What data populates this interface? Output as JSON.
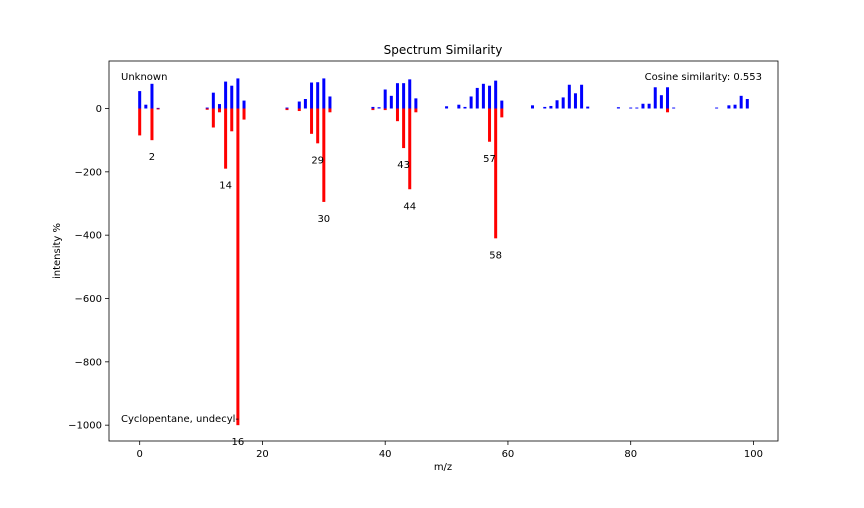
{
  "chart_data": {
    "type": "bar",
    "title": "Spectrum Similarity",
    "xlabel": "m/z",
    "ylabel": "intensity %",
    "xlim": [
      -5,
      104
    ],
    "ylim": [
      -1050,
      150
    ],
    "xticks": [
      0,
      20,
      40,
      60,
      80,
      100
    ],
    "yticks": [
      0,
      -200,
      -400,
      -600,
      -800,
      -1000
    ],
    "xtick_labels": [
      "0",
      "20",
      "40",
      "60",
      "80",
      "100"
    ],
    "ytick_labels": [
      "0",
      "−200",
      "−400",
      "−600",
      "−800",
      "−1000"
    ],
    "grid": false,
    "top_left_label": "Unknown",
    "bottom_left_label": "Cyclopentane, undecyl-",
    "similarity_text": "Cosine similarity: 0.553",
    "colors": {
      "unknown": "#0000ff",
      "reference": "#ff0000"
    },
    "series": [
      {
        "name": "Unknown",
        "color": "#0000ff",
        "x": [
          0,
          1,
          2,
          3,
          11,
          12,
          13,
          14,
          15,
          16,
          17,
          24,
          26,
          27,
          28,
          29,
          30,
          31,
          38,
          39,
          40,
          41,
          42,
          43,
          44,
          45,
          50,
          52,
          53,
          54,
          55,
          56,
          57,
          58,
          59,
          64,
          66,
          67,
          68,
          69,
          70,
          71,
          72,
          73,
          78,
          80,
          81,
          82,
          83,
          84,
          85,
          86,
          87,
          94,
          96,
          97,
          98,
          99
        ],
        "y": [
          55,
          12,
          78,
          2,
          3,
          50,
          14,
          85,
          72,
          95,
          25,
          3,
          22,
          30,
          82,
          83,
          95,
          38,
          5,
          4,
          60,
          40,
          80,
          80,
          92,
          32,
          7,
          12,
          5,
          38,
          65,
          78,
          72,
          88,
          25,
          10,
          5,
          8,
          26,
          35,
          75,
          48,
          75,
          6,
          4,
          3,
          3,
          15,
          15,
          67,
          42,
          67,
          3,
          3,
          10,
          12,
          40,
          30
        ]
      },
      {
        "name": "Cyclopentane, undecyl-",
        "color": "#ff0000",
        "x": [
          0,
          2,
          3,
          11,
          12,
          13,
          14,
          15,
          16,
          17,
          24,
          26,
          28,
          29,
          30,
          31,
          38,
          40,
          42,
          43,
          44,
          45,
          57,
          58,
          59,
          86
        ],
        "y": [
          -85,
          -100,
          -3,
          -4,
          -60,
          -12,
          -190,
          -72,
          -1000,
          -35,
          -5,
          -8,
          -80,
          -110,
          -295,
          -12,
          -5,
          -5,
          -40,
          -125,
          -255,
          -12,
          -105,
          -410,
          -28,
          -12
        ]
      }
    ],
    "peak_labels": [
      {
        "x": 2,
        "y": -100,
        "text": "2"
      },
      {
        "x": 14,
        "y": -190,
        "text": "14"
      },
      {
        "x": 16,
        "y": -1000,
        "text": "16"
      },
      {
        "x": 29,
        "y": -110,
        "text": "29"
      },
      {
        "x": 30,
        "y": -295,
        "text": "30"
      },
      {
        "x": 43,
        "y": -125,
        "text": "43"
      },
      {
        "x": 44,
        "y": -255,
        "text": "44"
      },
      {
        "x": 57,
        "y": -105,
        "text": "57"
      },
      {
        "x": 58,
        "y": -410,
        "text": "58"
      }
    ]
  }
}
